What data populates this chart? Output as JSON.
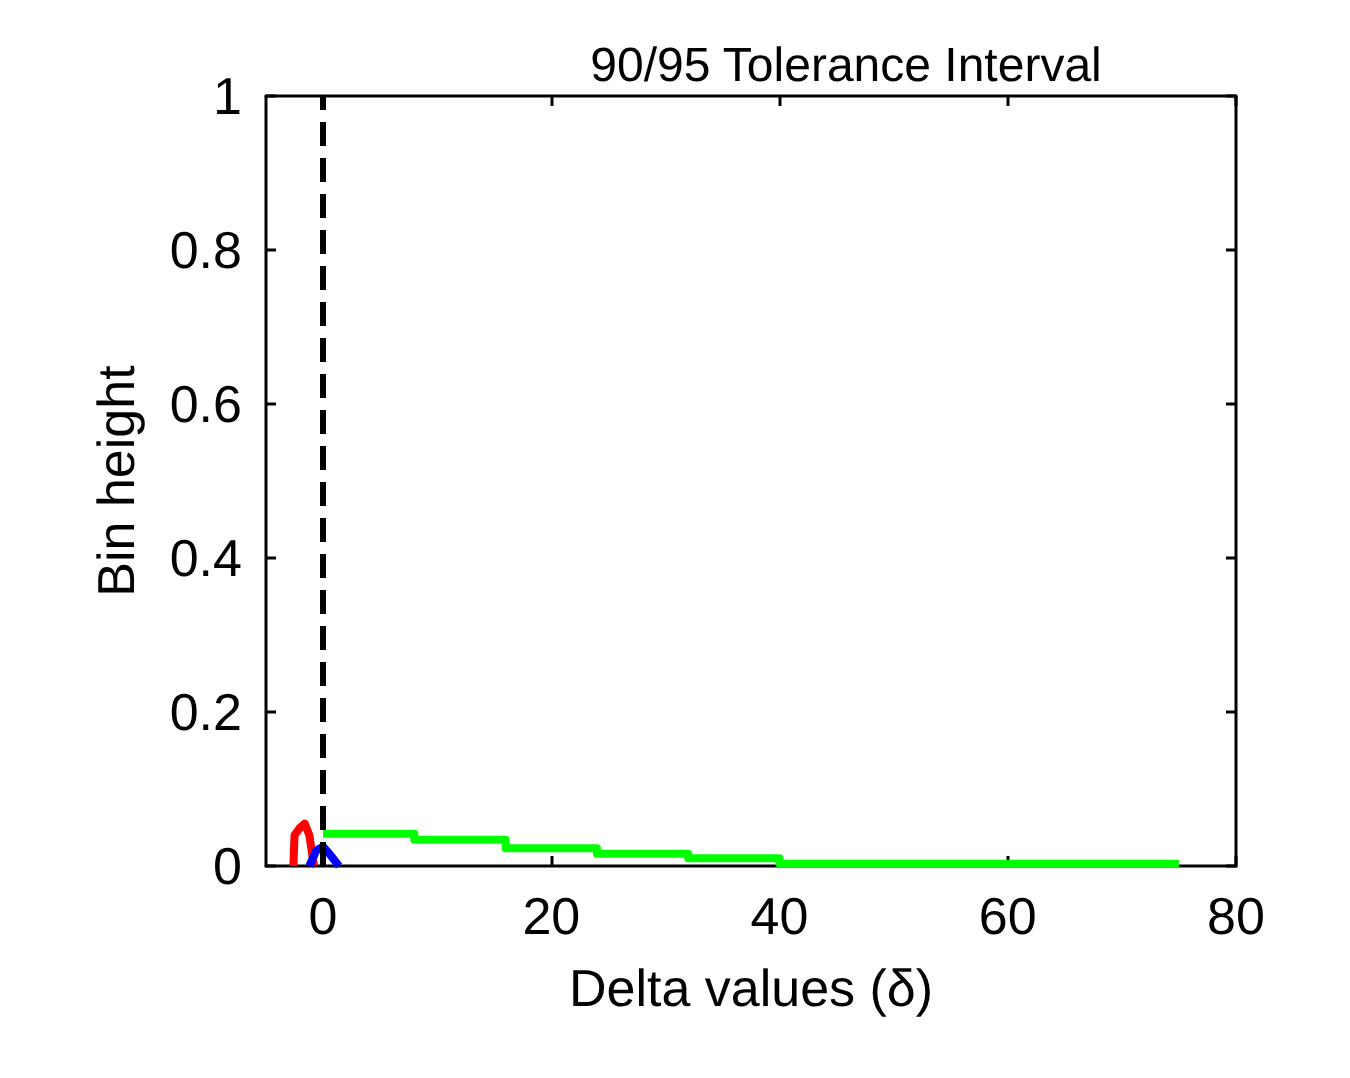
{
  "chart_data": {
    "type": "line",
    "title": "90/95 Tolerance Interval",
    "xlabel": "Delta values (δ)",
    "ylabel": "Bin height",
    "xlim": [
      -5,
      80
    ],
    "xticks": [
      0,
      20,
      40,
      60,
      80
    ],
    "ylim": [
      0,
      1
    ],
    "yticks": [
      0,
      0.2,
      0.4,
      0.6,
      0.8,
      1
    ],
    "grid": false,
    "marker": "none",
    "series": [
      {
        "color": "#ff0000",
        "x": [
          -2.6,
          -2.5,
          -2,
          -1.6,
          -1.2,
          -0.8
        ],
        "values": [
          0,
          0.04,
          0.05,
          0.055,
          0.04,
          0
        ]
      },
      {
        "color": "#0000ff",
        "x": [
          -1.2,
          -0.6,
          0,
          0.6,
          1.4
        ],
        "values": [
          0,
          0.02,
          0.025,
          0.015,
          0
        ]
      },
      {
        "type": "step",
        "color": "#00ff00",
        "x": [
          0,
          8,
          16,
          24,
          32,
          40,
          75
        ],
        "values": [
          0.042,
          0.034,
          0.023,
          0.016,
          0.01,
          0.003,
          0.003
        ]
      }
    ],
    "ref_lines": [
      {
        "axis": "x",
        "value": 0,
        "label": null,
        "color": "#000000",
        "line_style": "dashed"
      }
    ]
  }
}
